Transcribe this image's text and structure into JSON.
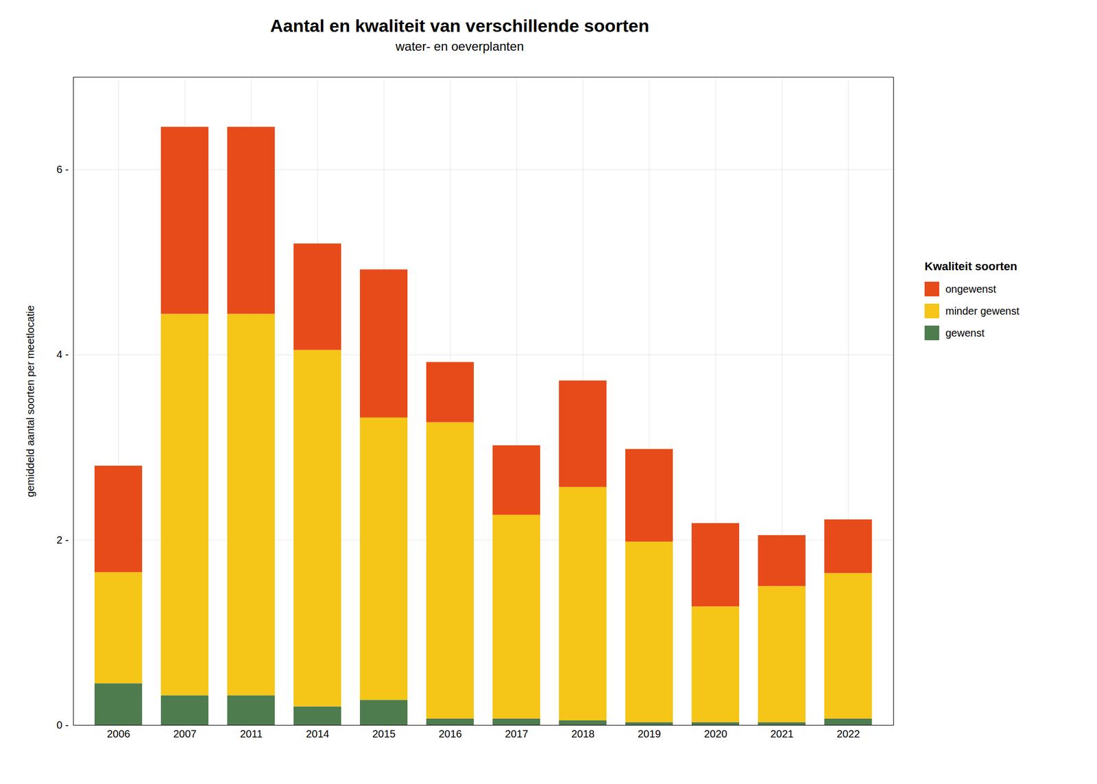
{
  "chart_data": {
    "type": "bar",
    "stacked": true,
    "title": "Aantal en kwaliteit van verschillende soorten",
    "subtitle": "water- en oeverplanten",
    "ylabel": "gemiddeld aantal soorten per meetlocatie",
    "legend_title": "Kwaliteit soorten",
    "categories": [
      "2006",
      "2007",
      "2011",
      "2014",
      "2015",
      "2016",
      "2017",
      "2018",
      "2019",
      "2020",
      "2021",
      "2022"
    ],
    "series": [
      {
        "name": "gewenst",
        "color": "#4e7c4f",
        "values": [
          0.45,
          0.32,
          0.32,
          0.2,
          0.27,
          0.07,
          0.07,
          0.05,
          0.03,
          0.03,
          0.03,
          0.07
        ]
      },
      {
        "name": "minder gewenst",
        "color": "#f5c518",
        "values": [
          1.2,
          4.12,
          4.12,
          3.85,
          3.05,
          3.2,
          2.2,
          2.52,
          1.95,
          1.25,
          1.47,
          1.57
        ]
      },
      {
        "name": "ongewenst",
        "color": "#e84b1a",
        "values": [
          1.15,
          2.02,
          2.02,
          1.15,
          1.6,
          0.65,
          0.75,
          1.15,
          1.0,
          0.9,
          0.55,
          0.58
        ]
      }
    ],
    "ylim": [
      0,
      7.0
    ],
    "yticks": [
      {
        "value": 0,
        "label": "0 -"
      },
      {
        "value": 2,
        "label": "2 -"
      },
      {
        "value": 4,
        "label": "4 -"
      },
      {
        "value": 6,
        "label": "6 -"
      }
    ],
    "grid": true,
    "legend": "right"
  }
}
